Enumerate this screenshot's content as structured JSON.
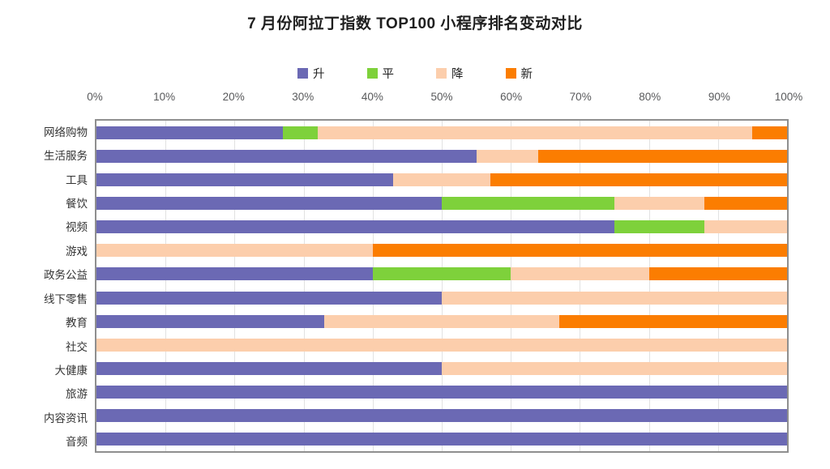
{
  "title": "7 月份阿拉丁指数 TOP100 小程序排名变动对比",
  "chart_data": {
    "type": "bar",
    "stacked": true,
    "orientation": "horizontal",
    "title": "7 月份阿拉丁指数 TOP100 小程序排名变动对比",
    "categories": [
      "网络购物",
      "生活服务",
      "工具",
      "餐饮",
      "视频",
      "游戏",
      "政务公益",
      "线下零售",
      "教育",
      "社交",
      "大健康",
      "旅游",
      "内容资讯",
      "音频"
    ],
    "series": [
      {
        "name": "升",
        "color": "#6b69b4",
        "values": [
          27,
          55,
          43,
          50,
          75,
          0,
          40,
          50,
          33,
          0,
          50,
          100,
          100,
          100
        ]
      },
      {
        "name": "平",
        "color": "#7ed13b",
        "values": [
          5,
          0,
          0,
          25,
          13,
          0,
          20,
          0,
          0,
          0,
          0,
          0,
          0,
          0
        ]
      },
      {
        "name": "降",
        "color": "#fcceac",
        "values": [
          63,
          9,
          14,
          13,
          12,
          40,
          20,
          50,
          34,
          100,
          50,
          0,
          0,
          0
        ]
      },
      {
        "name": "新",
        "color": "#fb7d01",
        "values": [
          5,
          36,
          43,
          12,
          0,
          60,
          20,
          0,
          33,
          0,
          0,
          0,
          0,
          0
        ]
      }
    ],
    "x_ticks": [
      "0%",
      "10%",
      "20%",
      "30%",
      "40%",
      "50%",
      "60%",
      "70%",
      "80%",
      "90%",
      "100%"
    ],
    "xlabel": "",
    "ylabel": "",
    "xlim": [
      0,
      100
    ],
    "grid": "vertical",
    "gridline_color": "#e2e2e2",
    "plot_border_color": "#8f8f8f",
    "legend_position": "top"
  }
}
